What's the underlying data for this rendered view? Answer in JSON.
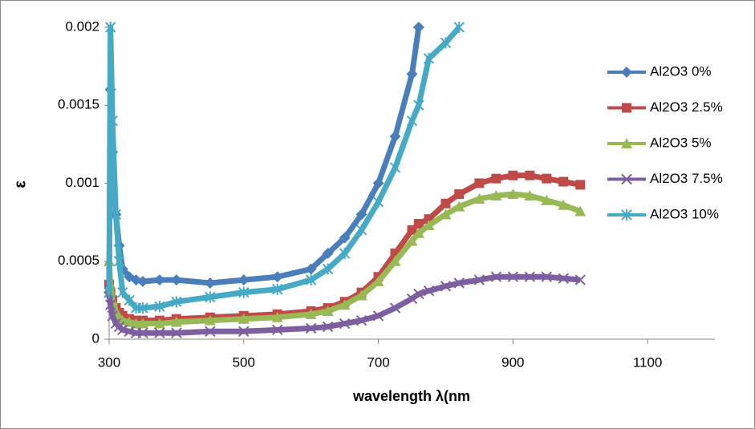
{
  "chart_data": {
    "type": "line",
    "x_label": "wavelength λ(nm",
    "y_label": "ε",
    "xlim": [
      300,
      1200
    ],
    "xticks": [
      300,
      500,
      700,
      900,
      1100
    ],
    "ylim": [
      0,
      0.002
    ],
    "yticks": [
      0,
      0.0005,
      0.001,
      0.0015,
      0.002
    ],
    "grid": false,
    "legend": "right",
    "x": [
      300,
      302,
      305,
      310,
      315,
      320,
      330,
      340,
      350,
      375,
      400,
      450,
      500,
      550,
      600,
      625,
      650,
      675,
      700,
      725,
      750,
      760,
      775,
      800,
      820,
      850,
      875,
      900,
      925,
      950,
      975,
      1000
    ],
    "series": [
      {
        "name": "Al2O3 0%",
        "color": "#4a7ebb",
        "marker": "diamond",
        "values": [
          0.0003,
          0.0016,
          0.0012,
          0.0008,
          0.0006,
          0.00045,
          0.0004,
          0.00038,
          0.00037,
          0.00038,
          0.00038,
          0.00036,
          0.00038,
          0.0004,
          0.00045,
          0.00055,
          0.00065,
          0.0008,
          0.001,
          0.0013,
          0.0017,
          0.002,
          null,
          null,
          null,
          null,
          null,
          null,
          null,
          null,
          null,
          null
        ]
      },
      {
        "name": "Al2O3 2.5%",
        "color": "#be4b48",
        "marker": "square",
        "values": [
          0.00035,
          0.0003,
          0.00025,
          0.0002,
          0.00017,
          0.00015,
          0.00013,
          0.00012,
          0.00012,
          0.00012,
          0.00013,
          0.00014,
          0.00015,
          0.00016,
          0.00018,
          0.0002,
          0.00024,
          0.0003,
          0.0004,
          0.00055,
          0.0007,
          0.00074,
          0.00077,
          0.00087,
          0.00093,
          0.001,
          0.00103,
          0.00105,
          0.00105,
          0.00103,
          0.00101,
          0.00099
        ]
      },
      {
        "name": "Al2O3 5%",
        "color": "#98b954",
        "marker": "triangle",
        "values": [
          0.0005,
          0.00035,
          0.00025,
          0.00018,
          0.00014,
          0.00012,
          0.00011,
          0.0001,
          0.0001,
          0.0001,
          0.00011,
          0.00012,
          0.00013,
          0.00014,
          0.00016,
          0.00018,
          0.00022,
          0.00028,
          0.00037,
          0.0005,
          0.00063,
          0.00068,
          0.00073,
          0.0008,
          0.00085,
          0.0009,
          0.00092,
          0.00093,
          0.00092,
          0.00089,
          0.00086,
          0.00082
        ]
      },
      {
        "name": "Al2O3 7.5%",
        "color": "#7d5fa0",
        "marker": "x",
        "values": [
          0.0003,
          0.00022,
          0.00015,
          0.0001,
          8e-05,
          6e-05,
          5e-05,
          4e-05,
          4e-05,
          4e-05,
          4e-05,
          5e-05,
          5e-05,
          6e-05,
          7e-05,
          8e-05,
          0.0001,
          0.00012,
          0.00015,
          0.0002,
          0.00026,
          0.00029,
          0.00031,
          0.00034,
          0.00036,
          0.00038,
          0.0004,
          0.0004,
          0.0004,
          0.0004,
          0.00039,
          0.00038
        ]
      },
      {
        "name": "Al2O3 10%",
        "color": "#46aac5",
        "marker": "star",
        "values": [
          0.0003,
          0.002,
          0.0014,
          0.0008,
          0.0005,
          0.0003,
          0.00025,
          0.0002,
          0.0002,
          0.00021,
          0.00024,
          0.00027,
          0.0003,
          0.00032,
          0.00038,
          0.00045,
          0.00055,
          0.0007,
          0.00088,
          0.0011,
          0.0014,
          0.0015,
          0.0018,
          0.0019,
          0.002,
          null,
          null,
          null,
          null,
          null,
          null,
          null
        ]
      }
    ]
  }
}
